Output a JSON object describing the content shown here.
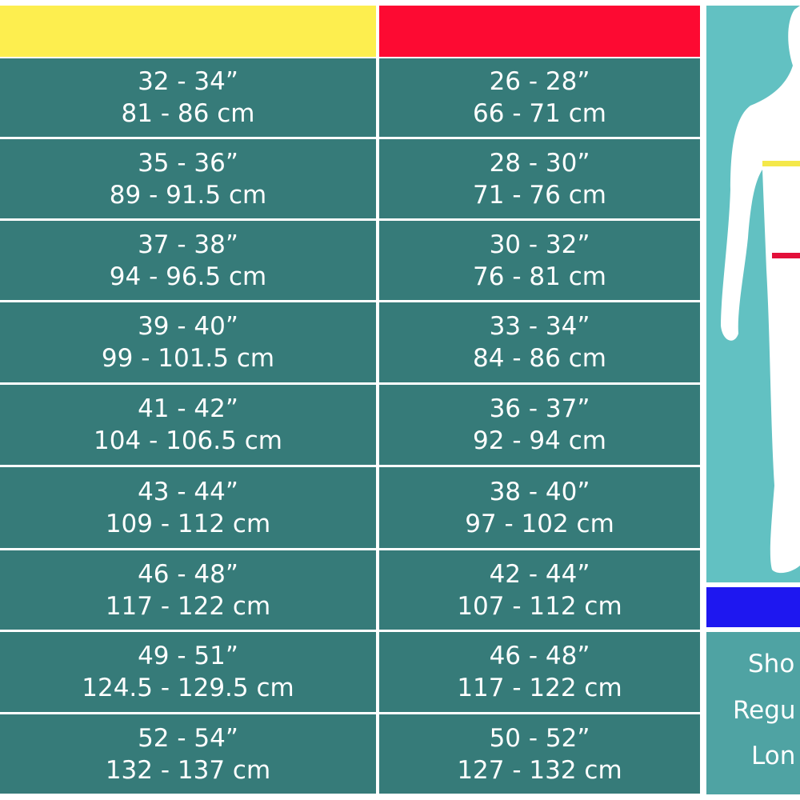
{
  "colors": {
    "col1_header": "#fdee4f",
    "col2_header": "#fd0a32",
    "cell": "#367b79",
    "figure_panel": "#62c1c2",
    "length_header": "#1e17f0",
    "length_panel": "#4fa3a3"
  },
  "rows": [
    {
      "c1a": "32 - 34”",
      "c1b": "81 - 86 cm",
      "c2a": "26 - 28”",
      "c2b": "66 - 71 cm"
    },
    {
      "c1a": "35 - 36”",
      "c1b": "89 - 91.5 cm",
      "c2a": "28 - 30”",
      "c2b": "71 - 76 cm"
    },
    {
      "c1a": "37 - 38”",
      "c1b": "94 - 96.5 cm",
      "c2a": "30 - 32”",
      "c2b": "76 - 81 cm"
    },
    {
      "c1a": "39 - 40”",
      "c1b": "99 - 101.5 cm",
      "c2a": "33 - 34”",
      "c2b": "84 - 86 cm"
    },
    {
      "c1a": "41 - 42”",
      "c1b": "104 - 106.5 cm",
      "c2a": "36 - 37”",
      "c2b": "92 - 94 cm"
    },
    {
      "c1a": "43 - 44”",
      "c1b": "109 - 112 cm",
      "c2a": "38 - 40”",
      "c2b": "97 - 102 cm"
    },
    {
      "c1a": "46 - 48”",
      "c1b": "117 - 122 cm",
      "c2a": "42 - 44”",
      "c2b": "107 - 112 cm"
    },
    {
      "c1a": "49 - 51”",
      "c1b": "124.5 - 129.5 cm",
      "c2a": "46 - 48”",
      "c2b": "117 - 122 cm"
    },
    {
      "c1a": "52 - 54”",
      "c1b": "132 - 137 cm",
      "c2a": "50 - 52”",
      "c2b": "127 - 132 cm"
    }
  ],
  "lengths": [
    "Sho",
    "Regu",
    "Lon"
  ]
}
